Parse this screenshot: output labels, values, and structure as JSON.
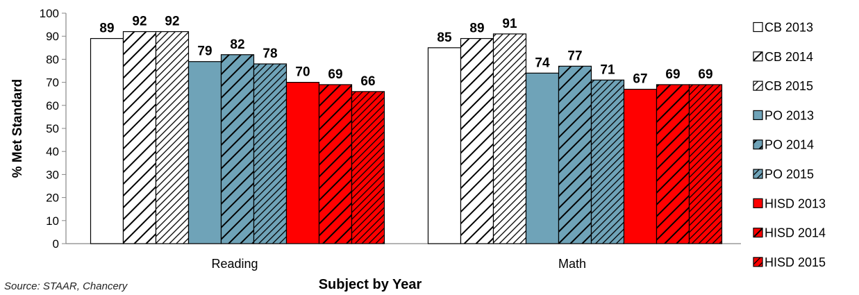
{
  "chart_data": {
    "type": "bar",
    "title": "",
    "xlabel": "Subject by Year",
    "ylabel": "% Met Standard",
    "ylim": [
      0,
      100
    ],
    "yticks": [
      0,
      10,
      20,
      30,
      40,
      50,
      60,
      70,
      80,
      90,
      100
    ],
    "grid": false,
    "legend_position": "right",
    "categories": [
      "Reading",
      "Math"
    ],
    "series": [
      {
        "name": "CB 2013",
        "values": [
          89,
          85
        ],
        "color": "#ffffff",
        "pattern": "solid"
      },
      {
        "name": "CB 2014",
        "values": [
          92,
          89
        ],
        "color": "#ffffff",
        "pattern": "hatch-wide"
      },
      {
        "name": "CB 2015",
        "values": [
          92,
          91
        ],
        "color": "#ffffff",
        "pattern": "hatch-dense"
      },
      {
        "name": "PO 2013",
        "values": [
          79,
          74
        ],
        "color": "#6fa3b8",
        "pattern": "solid"
      },
      {
        "name": "PO 2014",
        "values": [
          82,
          77
        ],
        "color": "#6fa3b8",
        "pattern": "hatch-wide"
      },
      {
        "name": "PO 2015",
        "values": [
          78,
          71
        ],
        "color": "#6fa3b8",
        "pattern": "hatch-dense"
      },
      {
        "name": "HISD 2013",
        "values": [
          70,
          67
        ],
        "color": "#ff0000",
        "pattern": "solid"
      },
      {
        "name": "HISD 2014",
        "values": [
          69,
          69
        ],
        "color": "#ff0000",
        "pattern": "hatch-wide"
      },
      {
        "name": "HISD 2015",
        "values": [
          66,
          69
        ],
        "color": "#ff0000",
        "pattern": "hatch-dense"
      }
    ]
  },
  "source_note": "Source: STAAR, Chancery"
}
